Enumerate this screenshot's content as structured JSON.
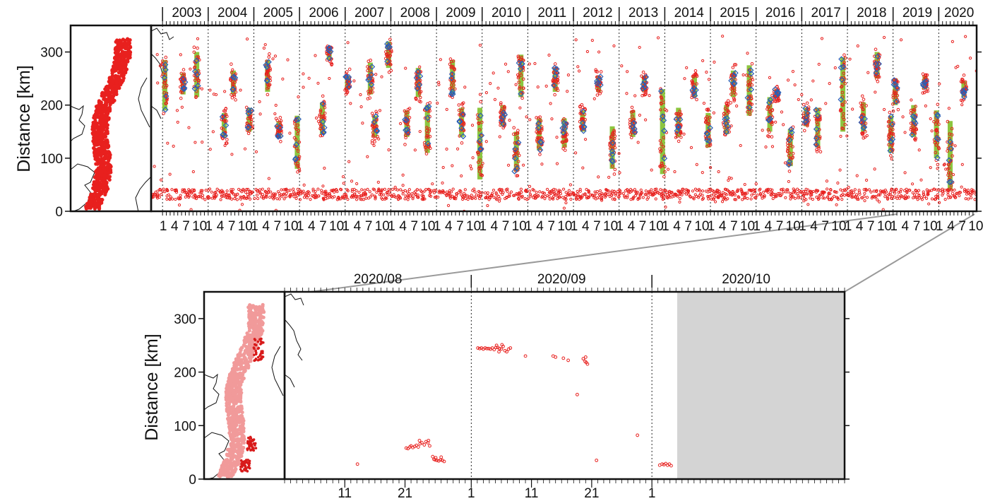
{
  "chart_data": [
    {
      "type": "scatter",
      "ylabel": "Distance [km]",
      "ylim": [
        0,
        350
      ],
      "yticks": [
        0,
        100,
        200,
        300
      ],
      "x_range_years": [
        2002.75,
        2020.83
      ],
      "year_labels": [
        "2003",
        "2004",
        "2005",
        "2006",
        "2007",
        "2008",
        "2009",
        "2010",
        "2011",
        "2012",
        "2013",
        "2014",
        "2015",
        "2016",
        "2017",
        "2018",
        "2019",
        "2020"
      ],
      "month_tick_labels": [
        "1",
        "4",
        "7",
        "10"
      ],
      "series": [
        {
          "name": "",
          "color": "#e8201e",
          "marker": "circle"
        },
        {
          "name": "",
          "color": "#2b5fb5",
          "marker": "diamond"
        },
        {
          "name": "",
          "color": "#8cc63f",
          "marker": "bar"
        }
      ],
      "episodes": [
        {
          "t": 2003.05,
          "y0": 190,
          "y1": 285
        },
        {
          "t": 2003.45,
          "y0": 220,
          "y1": 260
        },
        {
          "t": 2003.75,
          "y0": 215,
          "y1": 300
        },
        {
          "t": 2004.35,
          "y0": 140,
          "y1": 185
        },
        {
          "t": 2004.55,
          "y0": 220,
          "y1": 265
        },
        {
          "t": 2004.9,
          "y0": 150,
          "y1": 195
        },
        {
          "t": 2005.3,
          "y0": 225,
          "y1": 285
        },
        {
          "t": 2005.55,
          "y0": 140,
          "y1": 170
        },
        {
          "t": 2005.95,
          "y0": 80,
          "y1": 180
        },
        {
          "t": 2006.5,
          "y0": 145,
          "y1": 205
        },
        {
          "t": 2006.65,
          "y0": 285,
          "y1": 310
        },
        {
          "t": 2007.05,
          "y0": 230,
          "y1": 255
        },
        {
          "t": 2007.55,
          "y0": 220,
          "y1": 280
        },
        {
          "t": 2007.65,
          "y0": 140,
          "y1": 180
        },
        {
          "t": 2007.95,
          "y0": 270,
          "y1": 320
        },
        {
          "t": 2008.35,
          "y0": 140,
          "y1": 190
        },
        {
          "t": 2008.6,
          "y0": 215,
          "y1": 270
        },
        {
          "t": 2008.8,
          "y0": 110,
          "y1": 200
        },
        {
          "t": 2009.35,
          "y0": 220,
          "y1": 285
        },
        {
          "t": 2009.55,
          "y0": 140,
          "y1": 195
        },
        {
          "t": 2009.95,
          "y0": 60,
          "y1": 195
        },
        {
          "t": 2010.45,
          "y0": 160,
          "y1": 200
        },
        {
          "t": 2010.75,
          "y0": 75,
          "y1": 150
        },
        {
          "t": 2010.85,
          "y0": 215,
          "y1": 295
        },
        {
          "t": 2011.25,
          "y0": 115,
          "y1": 175
        },
        {
          "t": 2011.6,
          "y0": 225,
          "y1": 270
        },
        {
          "t": 2011.8,
          "y0": 120,
          "y1": 175
        },
        {
          "t": 2012.2,
          "y0": 150,
          "y1": 190
        },
        {
          "t": 2012.55,
          "y0": 225,
          "y1": 255
        },
        {
          "t": 2012.85,
          "y0": 80,
          "y1": 160
        },
        {
          "t": 2013.3,
          "y0": 140,
          "y1": 190
        },
        {
          "t": 2013.55,
          "y0": 225,
          "y1": 255
        },
        {
          "t": 2013.95,
          "y0": 70,
          "y1": 230
        },
        {
          "t": 2014.3,
          "y0": 140,
          "y1": 195
        },
        {
          "t": 2014.65,
          "y0": 215,
          "y1": 255
        },
        {
          "t": 2014.95,
          "y0": 120,
          "y1": 185
        },
        {
          "t": 2015.35,
          "y0": 145,
          "y1": 200
        },
        {
          "t": 2015.5,
          "y0": 215,
          "y1": 265
        },
        {
          "t": 2015.85,
          "y0": 180,
          "y1": 275
        },
        {
          "t": 2016.3,
          "y0": 150,
          "y1": 215
        },
        {
          "t": 2016.45,
          "y0": 215,
          "y1": 230
        },
        {
          "t": 2016.75,
          "y0": 85,
          "y1": 155
        },
        {
          "t": 2017.1,
          "y0": 160,
          "y1": 195
        },
        {
          "t": 2017.35,
          "y0": 120,
          "y1": 195
        },
        {
          "t": 2017.9,
          "y0": 150,
          "y1": 290
        },
        {
          "t": 2018.35,
          "y0": 150,
          "y1": 205
        },
        {
          "t": 2018.65,
          "y0": 250,
          "y1": 300
        },
        {
          "t": 2018.95,
          "y0": 110,
          "y1": 180
        },
        {
          "t": 2019.05,
          "y0": 200,
          "y1": 250
        },
        {
          "t": 2019.45,
          "y0": 140,
          "y1": 200
        },
        {
          "t": 2019.7,
          "y0": 230,
          "y1": 255
        },
        {
          "t": 2019.95,
          "y0": 100,
          "y1": 190
        },
        {
          "t": 2020.25,
          "y0": 40,
          "y1": 170
        },
        {
          "t": 2020.55,
          "y0": 215,
          "y1": 245
        }
      ]
    },
    {
      "type": "scatter",
      "ylabel": "Distance [km]",
      "ylim": [
        0,
        350
      ],
      "yticks": [
        0,
        100,
        200,
        300
      ],
      "x_range_day": [
        0,
        93
      ],
      "months": [
        "2020/08",
        "2020/09",
        "2020/10"
      ],
      "day_tick_labels": [
        {
          "day": 10,
          "label": "11"
        },
        {
          "day": 20,
          "label": "21"
        },
        {
          "day": 31,
          "label": "1"
        },
        {
          "day": 41,
          "label": "11"
        },
        {
          "day": 51,
          "label": "21"
        },
        {
          "day": 61,
          "label": "1"
        }
      ],
      "no_data_from_day": 65.2,
      "series": [
        {
          "name": "",
          "color": "#e8201e",
          "marker": "circle"
        }
      ],
      "points": [
        [
          12.1,
          28
        ],
        [
          20.2,
          58
        ],
        [
          20.5,
          57
        ],
        [
          20.8,
          60
        ],
        [
          21.0,
          62
        ],
        [
          21.3,
          59
        ],
        [
          21.6,
          61
        ],
        [
          21.9,
          63
        ],
        [
          22.2,
          60
        ],
        [
          22.5,
          66
        ],
        [
          22.8,
          68
        ],
        [
          23.2,
          64
        ],
        [
          23.5,
          70
        ],
        [
          23.8,
          68
        ],
        [
          24.1,
          62
        ],
        [
          22.4,
          72
        ],
        [
          23.9,
          72
        ],
        [
          24.6,
          42
        ],
        [
          24.8,
          37
        ],
        [
          25.0,
          36
        ],
        [
          25.3,
          35
        ],
        [
          25.6,
          34
        ],
        [
          25.9,
          36
        ],
        [
          26.2,
          35
        ],
        [
          26.5,
          33
        ],
        [
          25.1,
          40
        ],
        [
          26.0,
          41
        ],
        [
          32.1,
          245
        ],
        [
          32.4,
          244
        ],
        [
          32.7,
          245
        ],
        [
          33.0,
          243
        ],
        [
          33.3,
          245
        ],
        [
          33.6,
          244
        ],
        [
          33.9,
          244
        ],
        [
          34.2,
          243
        ],
        [
          34.5,
          245
        ],
        [
          34.8,
          242
        ],
        [
          35.1,
          246
        ],
        [
          35.4,
          246
        ],
        [
          35.7,
          244
        ],
        [
          36.0,
          243
        ],
        [
          36.3,
          248
        ],
        [
          36.6,
          240
        ],
        [
          36.9,
          238
        ],
        [
          37.2,
          243
        ],
        [
          37.5,
          245
        ],
        [
          35.2,
          250
        ],
        [
          35.6,
          238
        ],
        [
          36.1,
          251
        ],
        [
          40.0,
          230
        ],
        [
          44.6,
          230
        ],
        [
          45.0,
          228
        ],
        [
          46.3,
          226
        ],
        [
          47.1,
          222
        ],
        [
          49.6,
          225
        ],
        [
          49.9,
          220
        ],
        [
          50.1,
          218
        ],
        [
          50.3,
          215
        ],
        [
          50.0,
          228
        ],
        [
          48.6,
          158
        ],
        [
          51.8,
          35
        ],
        [
          58.6,
          82
        ],
        [
          62.3,
          26
        ],
        [
          62.7,
          28
        ],
        [
          63.0,
          27
        ],
        [
          63.3,
          29
        ],
        [
          63.6,
          26
        ],
        [
          63.9,
          28
        ],
        [
          64.2,
          25
        ]
      ]
    }
  ]
}
